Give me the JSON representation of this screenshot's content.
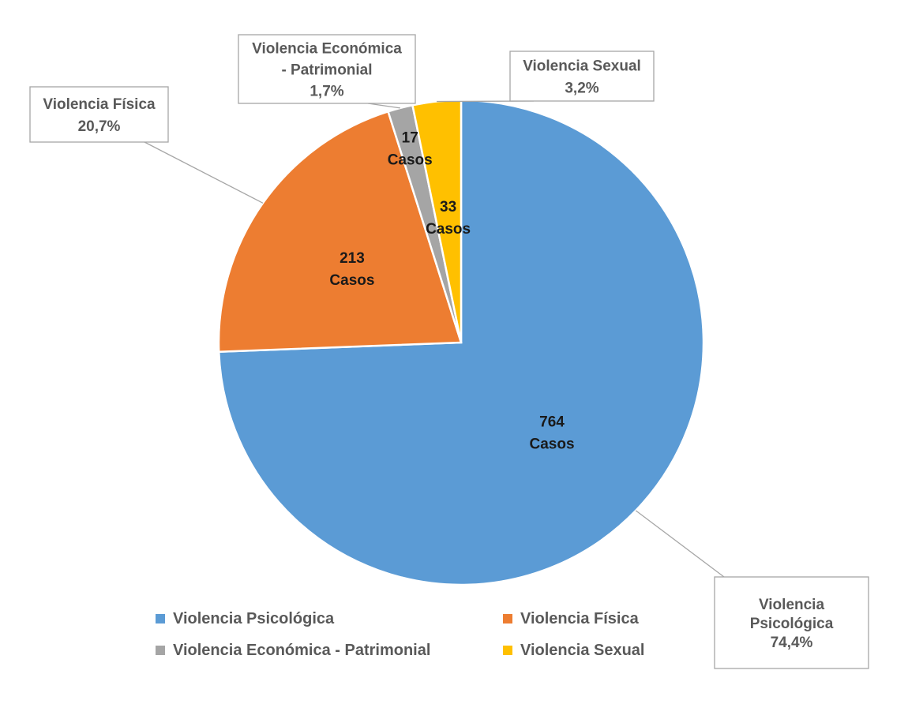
{
  "chart_data": {
    "type": "pie",
    "start_angle_deg": 0,
    "direction": "clockwise",
    "slices": [
      {
        "name": "Violencia Psicológica",
        "value": 764,
        "unit": "Casos",
        "percent": "74,4%",
        "callout_lines": [
          "Violencia",
          "Psicológica",
          "74,4%"
        ],
        "color": "#5B9BD5"
      },
      {
        "name": "Violencia Física",
        "value": 213,
        "unit": "Casos",
        "percent": "20,7%",
        "callout_lines": [
          "Violencia Física",
          "20,7%"
        ],
        "color": "#ED7D31"
      },
      {
        "name": "Violencia Económica - Patrimonial",
        "value": 17,
        "unit": "Casos",
        "percent": "1,7%",
        "callout_lines": [
          "Violencia Económica",
          "- Patrimonial",
          "1,7%"
        ],
        "color": "#A5A5A5"
      },
      {
        "name": "Violencia Sexual",
        "value": 33,
        "unit": "Casos",
        "percent": "3,2%",
        "callout_lines": [
          "Violencia Sexual",
          "3,2%"
        ],
        "color": "#FFC000"
      }
    ],
    "legend": {
      "placement": "bottom",
      "columns": 2
    }
  }
}
